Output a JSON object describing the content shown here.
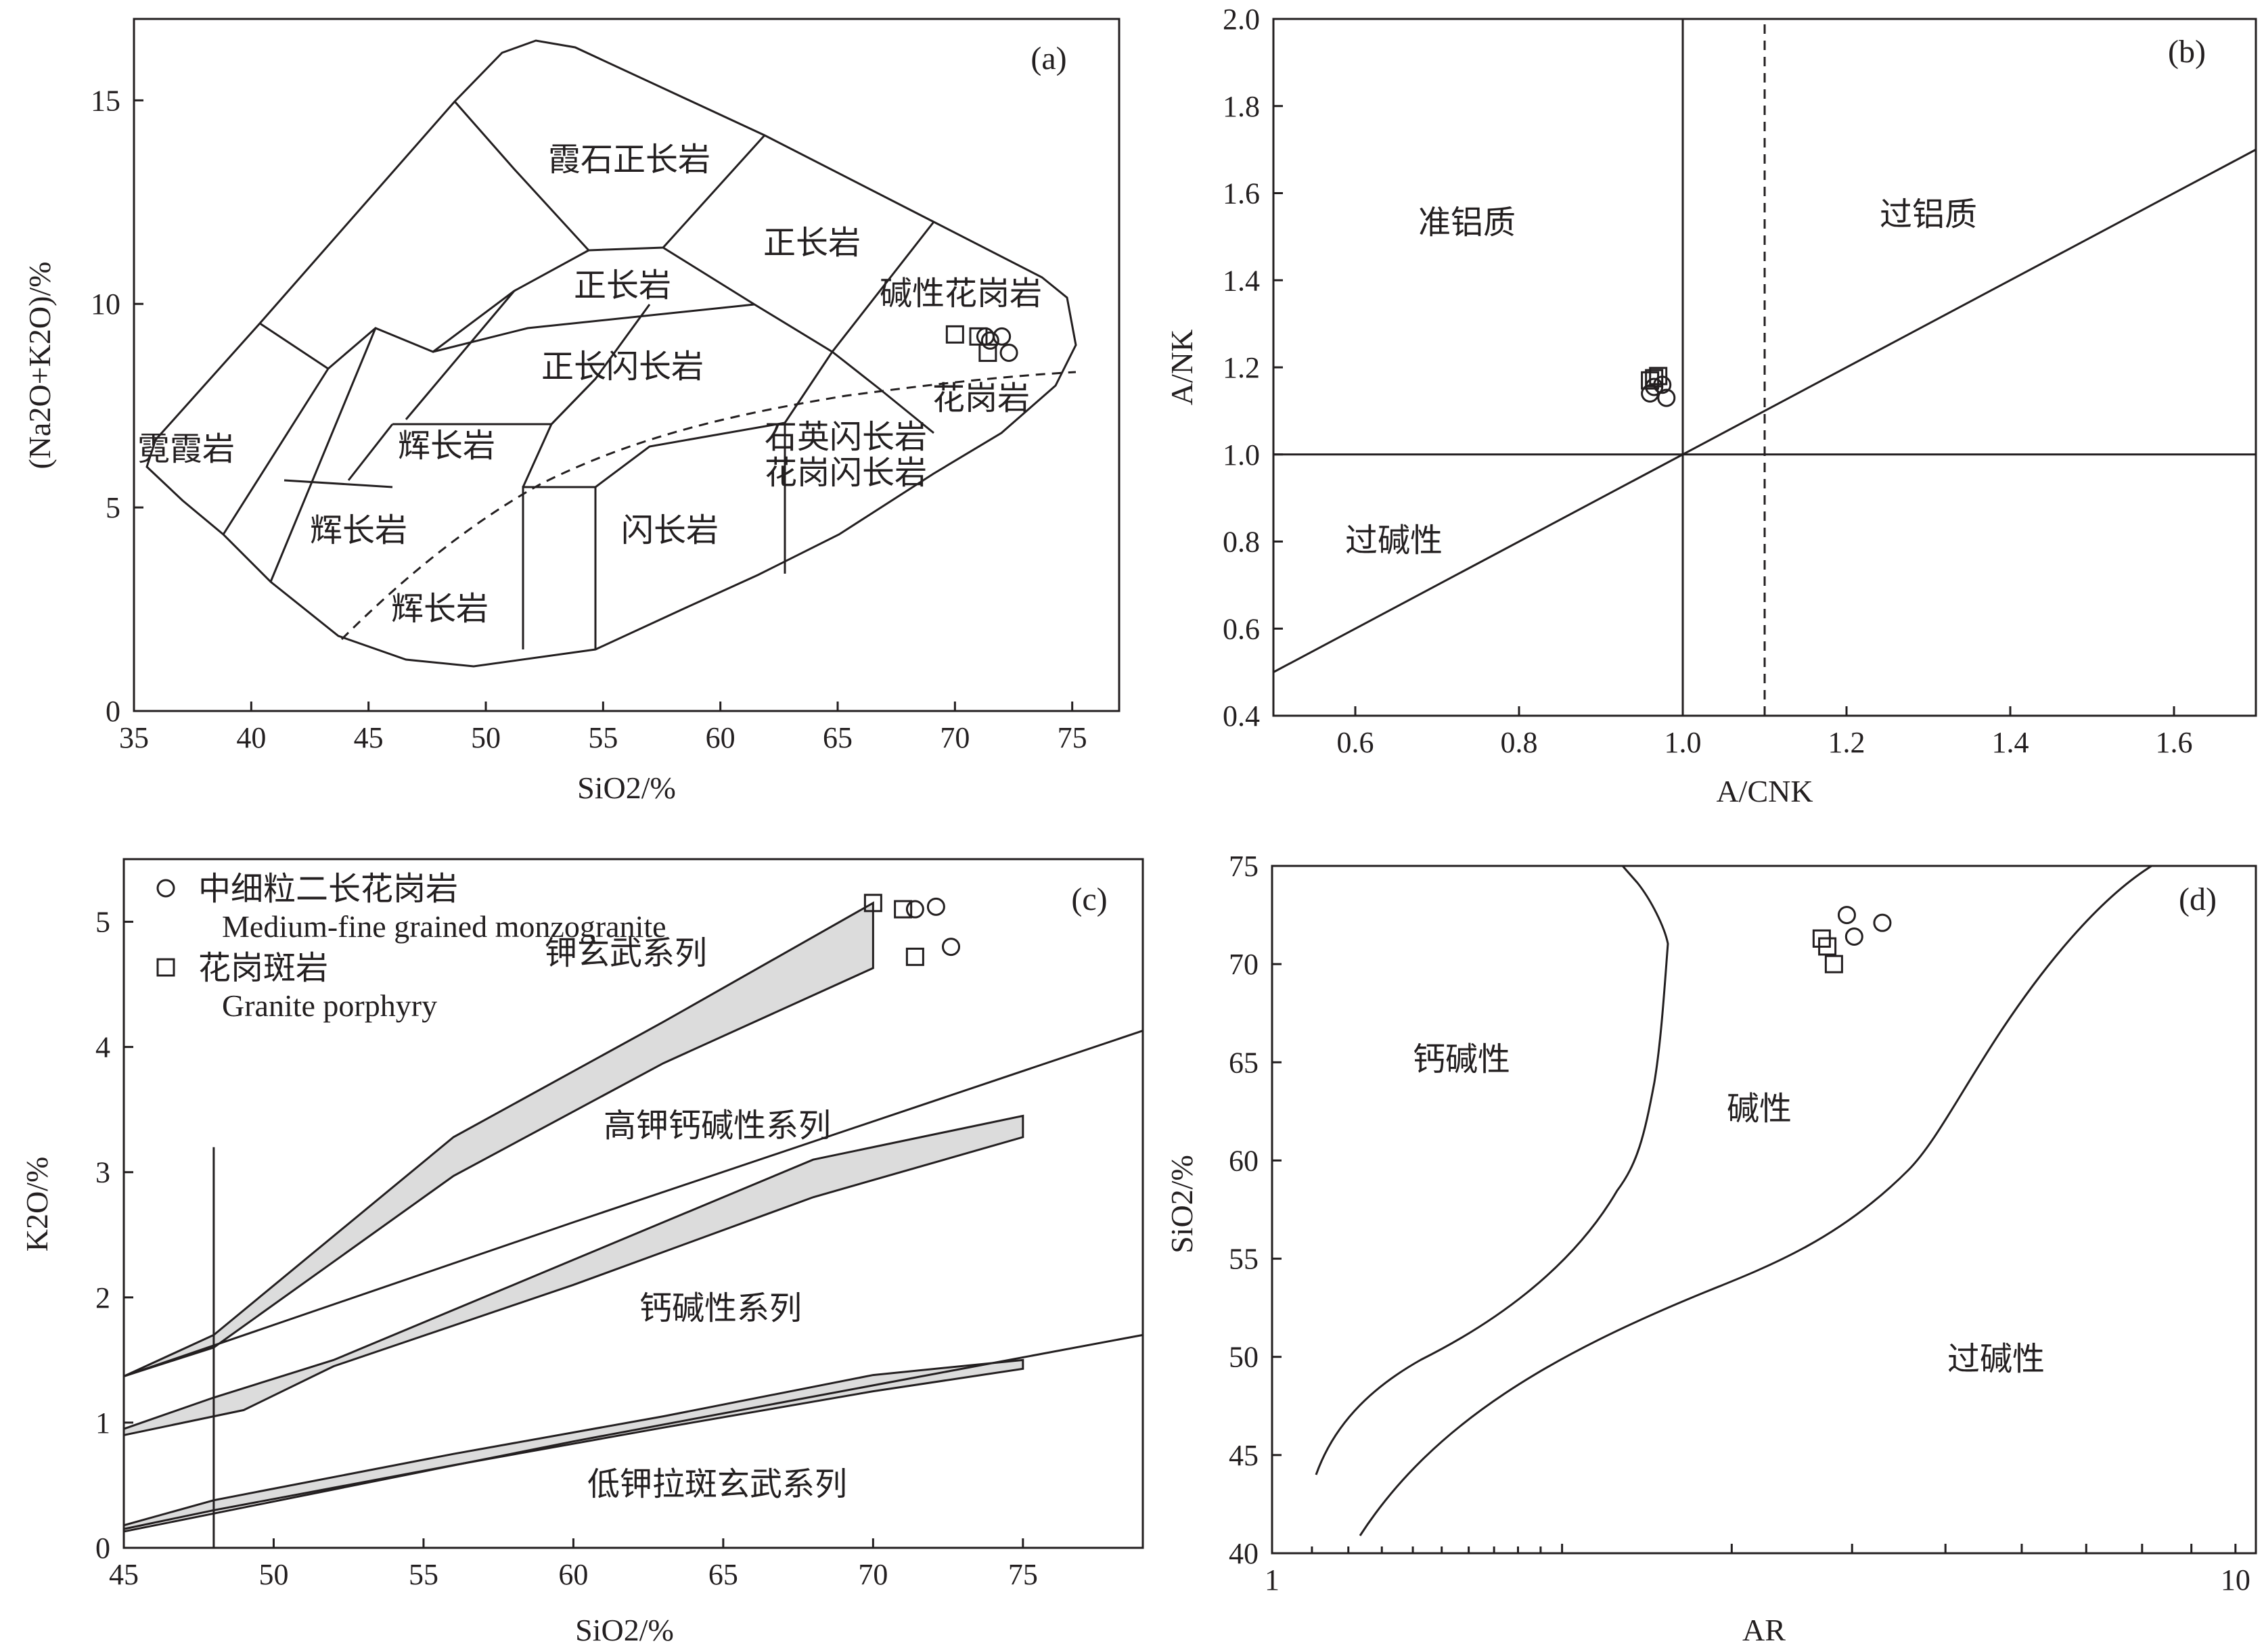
{
  "chart_data": [
    {
      "id": "a",
      "type": "scatter",
      "panel_label": "(a)",
      "xlabel": "SiO2/%",
      "ylabel": "(Na2O+K2O)/%",
      "xlim": [
        35,
        77
      ],
      "ylim": [
        0,
        17
      ],
      "xticks": [
        35,
        40,
        45,
        50,
        55,
        60,
        65,
        70,
        75
      ],
      "yticks": [
        0,
        5,
        10,
        15
      ],
      "field_labels": [
        "霓霞岩",
        "霞石正长岩",
        "正长岩",
        "正长岩",
        "碱性花岗岩",
        "正长闪长岩",
        "辉长岩",
        "辉长岩",
        "花岗岩",
        "石英闪长岩",
        "花岗闪长岩",
        "辉长岩",
        "闪长岩"
      ],
      "series": [
        {
          "name": "中细粒二长花岗岩",
          "marker": "circle",
          "points": [
            [
              71.3,
              9.2
            ],
            [
              71.5,
              9.1
            ],
            [
              72.0,
              9.2
            ],
            [
              72.3,
              8.8
            ]
          ]
        },
        {
          "name": "花岗斑岩",
          "marker": "square",
          "points": [
            [
              70.0,
              9.25
            ],
            [
              71.0,
              9.2
            ],
            [
              71.4,
              8.8
            ]
          ]
        }
      ]
    },
    {
      "id": "b",
      "type": "scatter",
      "panel_label": "(b)",
      "xlabel": "A/CNK",
      "ylabel": "A/NK",
      "xlim": [
        0.5,
        1.7
      ],
      "ylim": [
        0.4,
        2.0
      ],
      "xticks": [
        "0.6",
        "0.8",
        "1.0",
        "1.2",
        "1.4",
        "1.6"
      ],
      "yticks": [
        "0.4",
        "0.6",
        "0.8",
        "1.0",
        "1.2",
        "1.4",
        "1.6",
        "1.8",
        "2.0"
      ],
      "field_labels": [
        "准铝质",
        "过铝质",
        "过碱性"
      ],
      "series": [
        {
          "name": "中细粒二长花岗岩",
          "marker": "circle",
          "points": [
            [
              0.96,
              1.14
            ],
            [
              0.975,
              1.16
            ],
            [
              0.98,
              1.13
            ],
            [
              0.965,
              1.155
            ]
          ]
        },
        {
          "name": "花岗斑岩",
          "marker": "square",
          "points": [
            [
              0.96,
              1.17
            ],
            [
              0.97,
              1.18
            ],
            [
              0.965,
              1.175
            ]
          ]
        }
      ]
    },
    {
      "id": "c",
      "type": "scatter",
      "panel_label": "(c)",
      "xlabel": "SiO2/%",
      "ylabel": "K2O/%",
      "xlim": [
        45,
        79
      ],
      "ylim": [
        0,
        5.5
      ],
      "xticks": [
        45,
        50,
        55,
        60,
        65,
        70,
        75
      ],
      "yticks": [
        0,
        1,
        2,
        3,
        4,
        5
      ],
      "field_labels": [
        "钾玄武系列",
        "高钾钙碱性系列",
        "钙碱性系列",
        "低钾拉斑玄武系列"
      ],
      "series": [
        {
          "name": "中细粒二长花岗岩",
          "marker": "circle",
          "points": [
            [
              71.4,
              5.1
            ],
            [
              72.1,
              5.12
            ],
            [
              72.6,
              4.8
            ]
          ]
        },
        {
          "name": "花岗斑岩",
          "marker": "square",
          "points": [
            [
              70.0,
              5.15
            ],
            [
              71.0,
              5.1
            ],
            [
              71.4,
              4.72
            ]
          ]
        }
      ]
    },
    {
      "id": "d",
      "type": "scatter",
      "panel_label": "(d)",
      "xlabel": "AR",
      "ylabel": "SiO2/%",
      "xscale": "log",
      "xlim": [
        1,
        10.5
      ],
      "ylim": [
        40,
        75
      ],
      "xticks": [
        1,
        10
      ],
      "yticks": [
        40,
        45,
        50,
        55,
        60,
        65,
        70,
        75
      ],
      "field_labels": [
        "钙碱性",
        "碱性",
        "过碱性"
      ],
      "series": [
        {
          "name": "中细粒二长花岗岩",
          "marker": "circle",
          "points": [
            [
              3.95,
              72.5
            ],
            [
              4.3,
              72.1
            ],
            [
              4.02,
              71.4
            ]
          ]
        },
        {
          "name": "花岗斑岩",
          "marker": "square",
          "points": [
            [
              3.72,
              71.3
            ],
            [
              3.77,
              70.9
            ],
            [
              3.83,
              70.0
            ]
          ]
        }
      ]
    }
  ],
  "legend": [
    {
      "zh": "中细粒二长花岗岩",
      "en": "Medium-fine grained monzogranite",
      "marker": "circle"
    },
    {
      "zh": "花岗斑岩",
      "en": "Granite porphyry",
      "marker": "square"
    }
  ]
}
